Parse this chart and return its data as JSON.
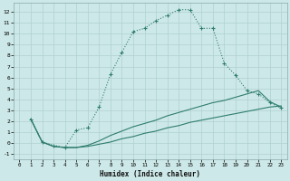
{
  "xlabel": "Humidex (Indice chaleur)",
  "bg_color": "#cde8e8",
  "grid_color": "#b0d0d0",
  "line_color": "#2e7d6e",
  "xlim": [
    -0.5,
    23.5
  ],
  "ylim": [
    -1.5,
    12.8
  ],
  "yticks": [
    -1,
    0,
    1,
    2,
    3,
    4,
    5,
    6,
    7,
    8,
    9,
    10,
    11,
    12
  ],
  "xticks": [
    0,
    1,
    2,
    3,
    4,
    5,
    6,
    7,
    8,
    9,
    10,
    11,
    12,
    13,
    14,
    15,
    16,
    17,
    18,
    19,
    20,
    21,
    22,
    23
  ],
  "series1_x": [
    1,
    2,
    3,
    4,
    5,
    6,
    7,
    8,
    9,
    10,
    11,
    12,
    13,
    14,
    15,
    16,
    17,
    18,
    19,
    20,
    21,
    22,
    23
  ],
  "series1_y": [
    2.2,
    0.1,
    -0.2,
    -0.4,
    1.2,
    1.4,
    3.3,
    6.3,
    8.3,
    10.2,
    10.5,
    11.2,
    11.7,
    12.2,
    12.2,
    10.5,
    10.5,
    7.3,
    6.2,
    4.8,
    4.5,
    3.7,
    3.2
  ],
  "series2_x": [
    1,
    2,
    3,
    4,
    5,
    6,
    7,
    8,
    9,
    10,
    11,
    12,
    13,
    14,
    15,
    16,
    17,
    18,
    19,
    20,
    21,
    22,
    23
  ],
  "series2_y": [
    2.2,
    0.1,
    -0.3,
    -0.4,
    -0.4,
    -0.3,
    -0.1,
    0.1,
    0.4,
    0.6,
    0.9,
    1.1,
    1.4,
    1.6,
    1.9,
    2.1,
    2.3,
    2.5,
    2.7,
    2.9,
    3.1,
    3.3,
    3.4
  ],
  "series3_x": [
    1,
    2,
    3,
    4,
    5,
    6,
    7,
    8,
    9,
    10,
    11,
    12,
    13,
    14,
    15,
    16,
    17,
    18,
    19,
    20,
    21,
    22,
    23
  ],
  "series3_y": [
    2.2,
    0.1,
    -0.3,
    -0.4,
    -0.4,
    -0.2,
    0.2,
    0.7,
    1.1,
    1.5,
    1.8,
    2.1,
    2.5,
    2.8,
    3.1,
    3.4,
    3.7,
    3.9,
    4.2,
    4.5,
    4.8,
    3.8,
    3.3
  ]
}
